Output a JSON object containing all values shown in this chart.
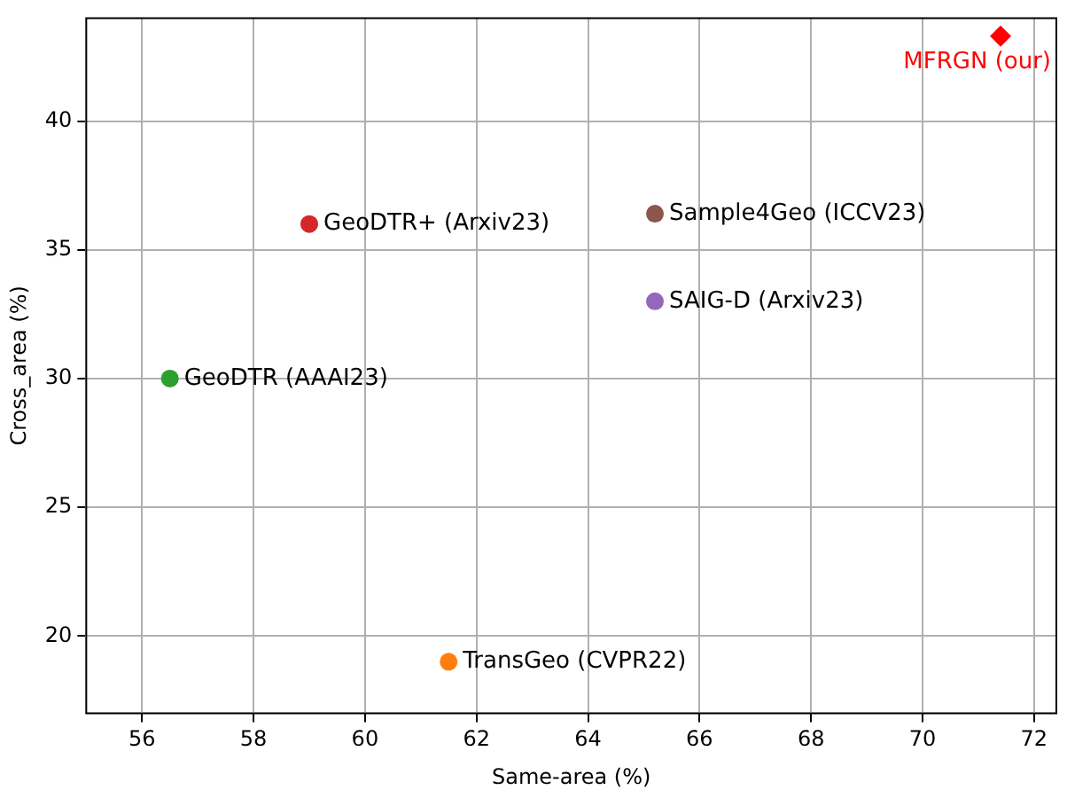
{
  "chart_data": {
    "type": "scatter",
    "xlabel": "Same-area (%)",
    "ylabel": "Cross_area (%)",
    "xlim": [
      55,
      72.4
    ],
    "ylim": [
      17,
      44
    ],
    "xticks": [
      56,
      58,
      60,
      62,
      64,
      66,
      68,
      70,
      72
    ],
    "yticks": [
      20,
      25,
      30,
      35,
      40
    ],
    "grid": true,
    "legend": false,
    "series": [
      {
        "name": "TransGeo (CVPR22)",
        "color": "#ff7f0e",
        "marker": "circle",
        "x": [
          61.5
        ],
        "values": [
          19.0
        ]
      },
      {
        "name": "GeoDTR (AAAI23)",
        "color": "#2ca02c",
        "marker": "circle",
        "x": [
          56.5
        ],
        "values": [
          30.0
        ]
      },
      {
        "name": "GeoDTR+ (Arxiv23)",
        "color": "#d62728",
        "marker": "circle",
        "x": [
          59.0
        ],
        "values": [
          36.0
        ]
      },
      {
        "name": "SAIG-D (Arxiv23)",
        "color": "#9467bd",
        "marker": "circle",
        "x": [
          65.2
        ],
        "values": [
          33.0
        ]
      },
      {
        "name": "Sample4Geo (ICCV23)",
        "color": "#8c564b",
        "marker": "circle",
        "x": [
          65.2
        ],
        "values": [
          36.4
        ]
      },
      {
        "name": "MFRGN (our)",
        "color": "#ff0000",
        "marker": "diamond",
        "x": [
          71.4
        ],
        "values": [
          43.3
        ]
      }
    ]
  }
}
